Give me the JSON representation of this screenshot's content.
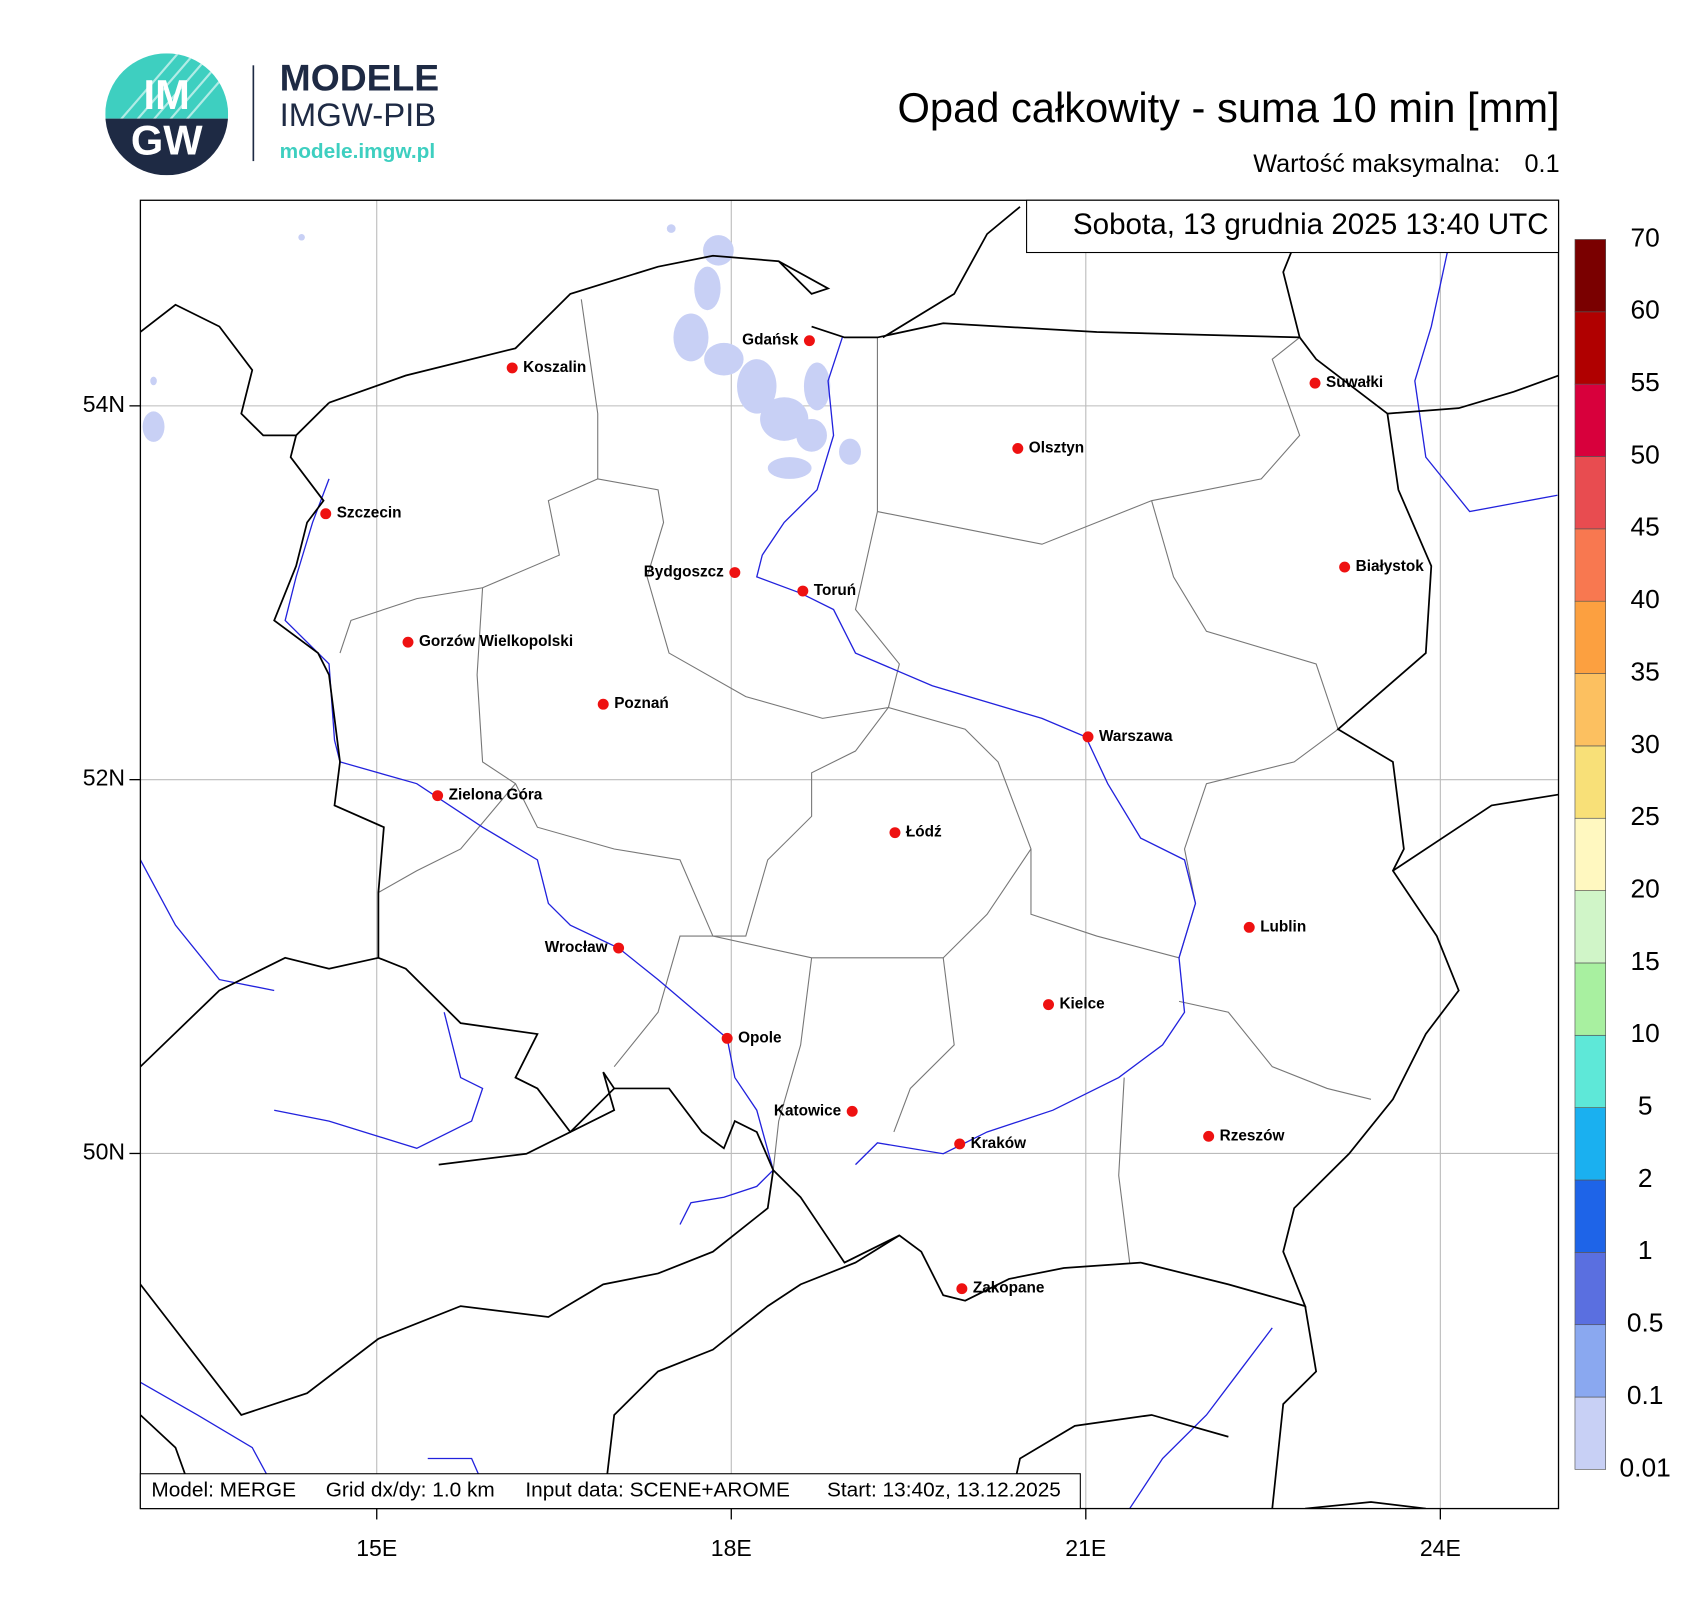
{
  "logo": {
    "mark_top": "IM",
    "mark_bottom": "GW",
    "name": "MODELE",
    "org": "IMGW-PIB",
    "url": "modele.imgw.pl"
  },
  "title": "Opad całkowity - suma 10 min [mm]",
  "max_label": "Wartość maksymalna:",
  "max_value": 0.1,
  "timestamp": "Sobota, 13 grudnia 2025 13:40 UTC",
  "map": {
    "xlim": [
      13,
      25
    ],
    "ylim": [
      48.1,
      55.1
    ],
    "xticks": [
      {
        "value": 15,
        "label": "15E"
      },
      {
        "value": 18,
        "label": "18E"
      },
      {
        "value": 21,
        "label": "21E"
      },
      {
        "value": 24,
        "label": "24E"
      }
    ],
    "yticks": [
      {
        "value": 50,
        "label": "50N"
      },
      {
        "value": 52,
        "label": "52N"
      },
      {
        "value": 54,
        "label": "54N"
      }
    ],
    "grid": true
  },
  "cities": [
    "Gdańsk",
    "Koszalin",
    "Suwałki",
    "Olsztyn",
    "Szczecin",
    "Białystok",
    "Bydgoszcz",
    "Toruń",
    "Gorzów Wielkopolski",
    "Poznań",
    "Warszawa",
    "Zielona Góra",
    "Łódź",
    "Lublin",
    "Wrocław",
    "Kielce",
    "Opole",
    "Katowice",
    "Kraków",
    "Rzeszów",
    "Zakopane"
  ],
  "colorbar": {
    "levels": [
      0.01,
      0.1,
      0.5,
      1,
      2,
      5,
      10,
      15,
      20,
      25,
      30,
      35,
      40,
      45,
      50,
      55,
      60,
      70
    ],
    "colors": [
      "#c8d0f5",
      "#8aa8f0",
      "#5a6fe0",
      "#1e64e8",
      "#1ab0f0",
      "#5ee8d8",
      "#a8f0a0",
      "#d0f5c8",
      "#fff8c0",
      "#f8e078",
      "#fcc060",
      "#fca040",
      "#f87850",
      "#e84c50",
      "#d8003c",
      "#b00000",
      "#7a0000"
    ]
  },
  "footer": [
    "Model: MERGE",
    "Grid dx/dy: 1.0 km",
    "Input data: SCENE+AROME",
    "Start: 13:40z, 13.12.2025"
  ]
}
